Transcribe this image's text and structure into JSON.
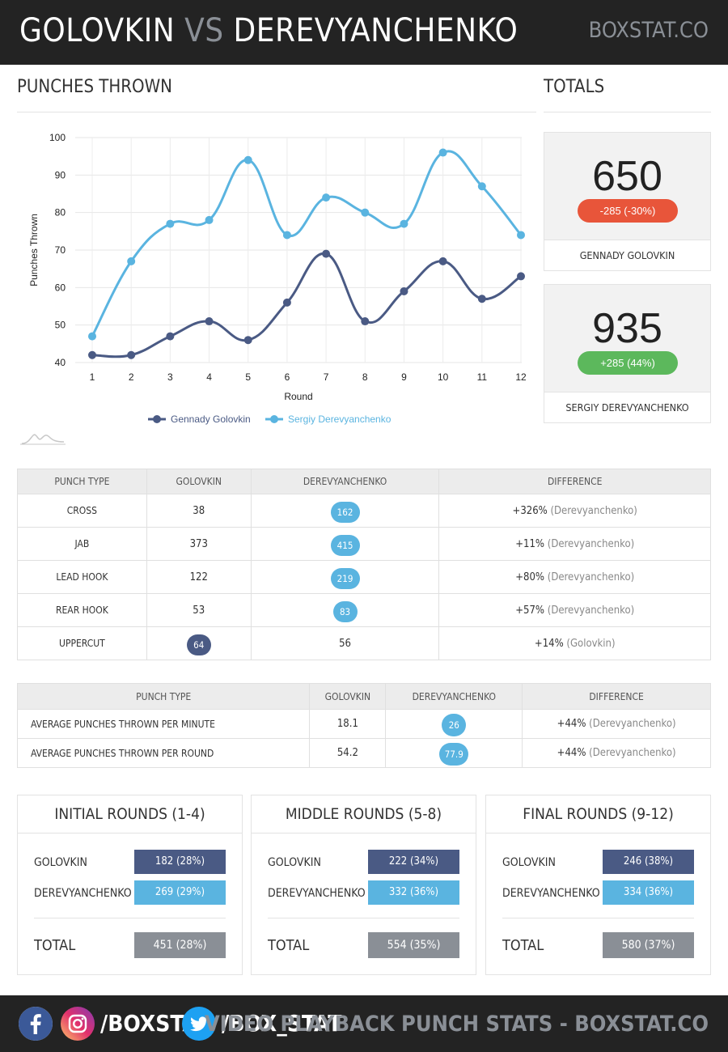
{
  "header": {
    "fighter1": "GOLOVKIN",
    "vs": "VS",
    "fighter2": "DEREVYANCHENKO",
    "brand": "BOXSTAT.CO"
  },
  "sections": {
    "punches_thrown": "PUNCHES THROWN",
    "totals": "TOTALS"
  },
  "chart_data": {
    "type": "line",
    "title": "PUNCHES THROWN",
    "xlabel": "Round",
    "ylabel": "Punches Thrown",
    "ylim": [
      40,
      100
    ],
    "yticks": [
      40,
      50,
      60,
      70,
      80,
      90,
      100
    ],
    "x": [
      1,
      2,
      3,
      4,
      5,
      6,
      7,
      8,
      9,
      10,
      11,
      12
    ],
    "series": [
      {
        "name": "Gennady Golovkin",
        "color": "#4a5a84",
        "values": [
          42,
          42,
          47,
          51,
          46,
          56,
          69,
          51,
          59,
          67,
          57,
          63
        ]
      },
      {
        "name": "Sergiy Derevyanchenko",
        "color": "#5ab4e0",
        "values": [
          47,
          67,
          77,
          78,
          94,
          74,
          84,
          80,
          77,
          96,
          87,
          74
        ]
      }
    ]
  },
  "totals": [
    {
      "value": "650",
      "diff": "-285 (-30%)",
      "color": "#e8553a",
      "name": "GENNADY GOLOVKIN"
    },
    {
      "value": "935",
      "diff": "+285 (44%)",
      "color": "#5cb85c",
      "name": "SERGIY DEREVYANCHENKO"
    }
  ],
  "punch_table": {
    "headers": [
      "PUNCH TYPE",
      "GOLOVKIN",
      "DEREVYANCHENKO",
      "DIFFERENCE"
    ],
    "rows": [
      {
        "type": "CROSS",
        "g": "38",
        "d": "162",
        "winner": "d",
        "pct": "+326%",
        "who": "(Derevyanchenko)"
      },
      {
        "type": "JAB",
        "g": "373",
        "d": "415",
        "winner": "d",
        "pct": "+11%",
        "who": "(Derevyanchenko)"
      },
      {
        "type": "LEAD HOOK",
        "g": "122",
        "d": "219",
        "winner": "d",
        "pct": "+80%",
        "who": "(Derevyanchenko)"
      },
      {
        "type": "REAR HOOK",
        "g": "53",
        "d": "83",
        "winner": "d",
        "pct": "+57%",
        "who": "(Derevyanchenko)"
      },
      {
        "type": "UPPERCUT",
        "g": "64",
        "d": "56",
        "winner": "g",
        "pct": "+14%",
        "who": "(Golovkin)"
      }
    ]
  },
  "avg_table": {
    "headers": [
      "PUNCH TYPE",
      "GOLOVKIN",
      "DEREVYANCHENKO",
      "DIFFERENCE"
    ],
    "rows": [
      {
        "type": "AVERAGE PUNCHES THROWN PER MINUTE",
        "g": "18.1",
        "d": "26",
        "winner": "d",
        "pct": "+44%",
        "who": "(Derevyanchenko)"
      },
      {
        "type": "AVERAGE PUNCHES THROWN PER ROUND",
        "g": "54.2",
        "d": "77.9",
        "winner": "d",
        "pct": "+44%",
        "who": "(Derevyanchenko)"
      }
    ]
  },
  "rounds": [
    {
      "title": "INITIAL ROUNDS (1-4)",
      "golovkin_label": "GOLOVKIN",
      "golovkin": "182 (28%)",
      "derev_label": "DEREVYANCHENKO",
      "derev": "269 (29%)",
      "total_label": "TOTAL",
      "total": "451 (28%)"
    },
    {
      "title": "MIDDLE ROUNDS (5-8)",
      "golovkin_label": "GOLOVKIN",
      "golovkin": "222 (34%)",
      "derev_label": "DEREVYANCHENKO",
      "derev": "332 (36%)",
      "total_label": "TOTAL",
      "total": "554 (35%)"
    },
    {
      "title": "FINAL ROUNDS (9-12)",
      "golovkin_label": "GOLOVKIN",
      "golovkin": "246 (38%)",
      "derev_label": "DEREVYANCHENKO",
      "derev": "334 (36%)",
      "total_label": "TOTAL",
      "total": "580 (37%)"
    }
  ],
  "footer": {
    "instagram_handle": "/BOXSTAT",
    "twitter_handle": "/BOX_STAT",
    "tagline": "VIDEO PLAYBACK PUNCH STATS - BOXSTAT.CO"
  },
  "colors": {
    "golovkin": "#4a5a84",
    "derevyanchenko": "#5ab4e0",
    "total": "#8a8f96"
  }
}
